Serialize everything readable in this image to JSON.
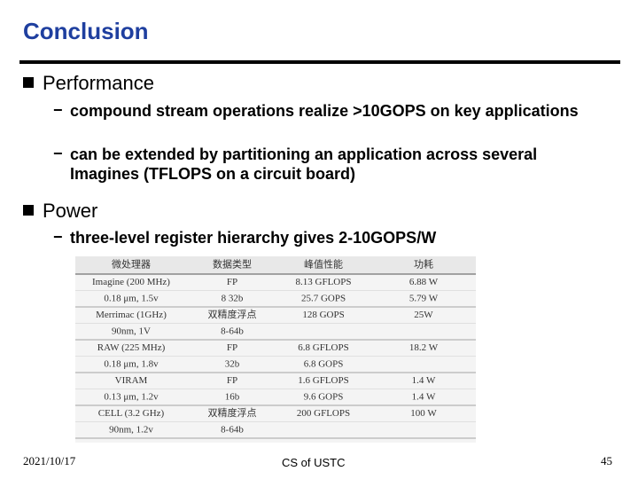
{
  "header": {
    "title": "Conclusion"
  },
  "bullets": [
    {
      "text": "Performance",
      "items": [
        "compound stream operations realize >10GOPS on key applications",
        "can be extended by partitioning an application across several Imagines (TFLOPS on a circuit board)"
      ]
    },
    {
      "text": "Power",
      "items": [
        "three-level register hierarchy gives 2-10GOPS/W"
      ]
    }
  ],
  "table": {
    "headers": [
      "微处理器",
      "数据类型",
      "峰值性能",
      "功耗"
    ],
    "rows": [
      [
        [
          "Imagine (200 MHz)",
          "0.18 μm, 1.5v"
        ],
        [
          "FP",
          "8 32b"
        ],
        [
          "8.13 GFLOPS",
          "25.7 GOPS"
        ],
        [
          "6.88 W",
          "5.79 W"
        ]
      ],
      [
        [
          "Merrimac (1GHz)",
          "90nm, 1V"
        ],
        [
          "双精度浮点",
          "8-64b"
        ],
        [
          "128 GOPS"
        ],
        [
          "25W"
        ]
      ],
      [
        [
          "RAW (225 MHz)",
          "0.18 μm, 1.8v"
        ],
        [
          "FP",
          "32b"
        ],
        [
          "6.8 GFLOPS",
          "6.8 GOPS"
        ],
        [
          "18.2 W"
        ]
      ],
      [
        [
          "VIRAM",
          "0.13 μm, 1.2v"
        ],
        [
          "FP",
          "16b"
        ],
        [
          "1.6 GFLOPS",
          "9.6 GOPS"
        ],
        [
          "1.4 W",
          "1.4 W"
        ]
      ],
      [
        [
          "CELL (3.2 GHz)",
          "90nm, 1.2v"
        ],
        [
          "双精度浮点",
          "8-64b"
        ],
        [
          "200 GFLOPS"
        ],
        [
          "100 W"
        ]
      ]
    ]
  },
  "footer": {
    "date": "2021/10/17",
    "center": "CS of USTC",
    "page": "45"
  }
}
